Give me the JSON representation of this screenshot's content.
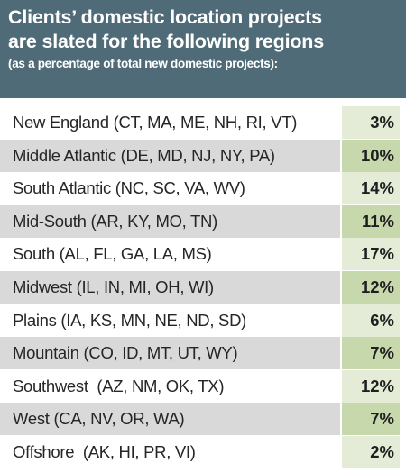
{
  "header": {
    "title_line1": "Clients’ domestic location projects",
    "title_line2": "are slated for the following regions",
    "subtitle": "(as a percentage of total new domestic projects):"
  },
  "rows": [
    {
      "name": "New England",
      "states": " (CT, MA, ME, NH, RI, VT)",
      "value": "3%"
    },
    {
      "name": "Middle Atlantic",
      "states": " (DE, MD, NJ, NY, PA)",
      "value": "10%"
    },
    {
      "name": "South Atlantic",
      "states": " (NC, SC, VA, WV)",
      "value": "14%"
    },
    {
      "name": "Mid-South",
      "states": " (AR, KY, MO, TN)",
      "value": "11%"
    },
    {
      "name": "South",
      "states": " (AL, FL, GA, LA, MS)",
      "value": "17%"
    },
    {
      "name": "Midwest",
      "states": " (IL, IN, MI, OH, WI)",
      "value": "12%"
    },
    {
      "name": "Plains",
      "states": " (IA, KS, MN, NE, ND, SD)",
      "value": "6%"
    },
    {
      "name": "Mountain",
      "states": " (CO, ID, MT, UT, WY)",
      "value": "7%"
    },
    {
      "name": "Southwest",
      "states": "  (AZ, NM, OK, TX)",
      "value": "12%"
    },
    {
      "name": "West",
      "states": " (CA, NV, OR, WA)",
      "value": "7%"
    },
    {
      "name": "Offshore",
      "states": "  (AK, HI, PR, VI)",
      "value": "2%"
    }
  ]
}
